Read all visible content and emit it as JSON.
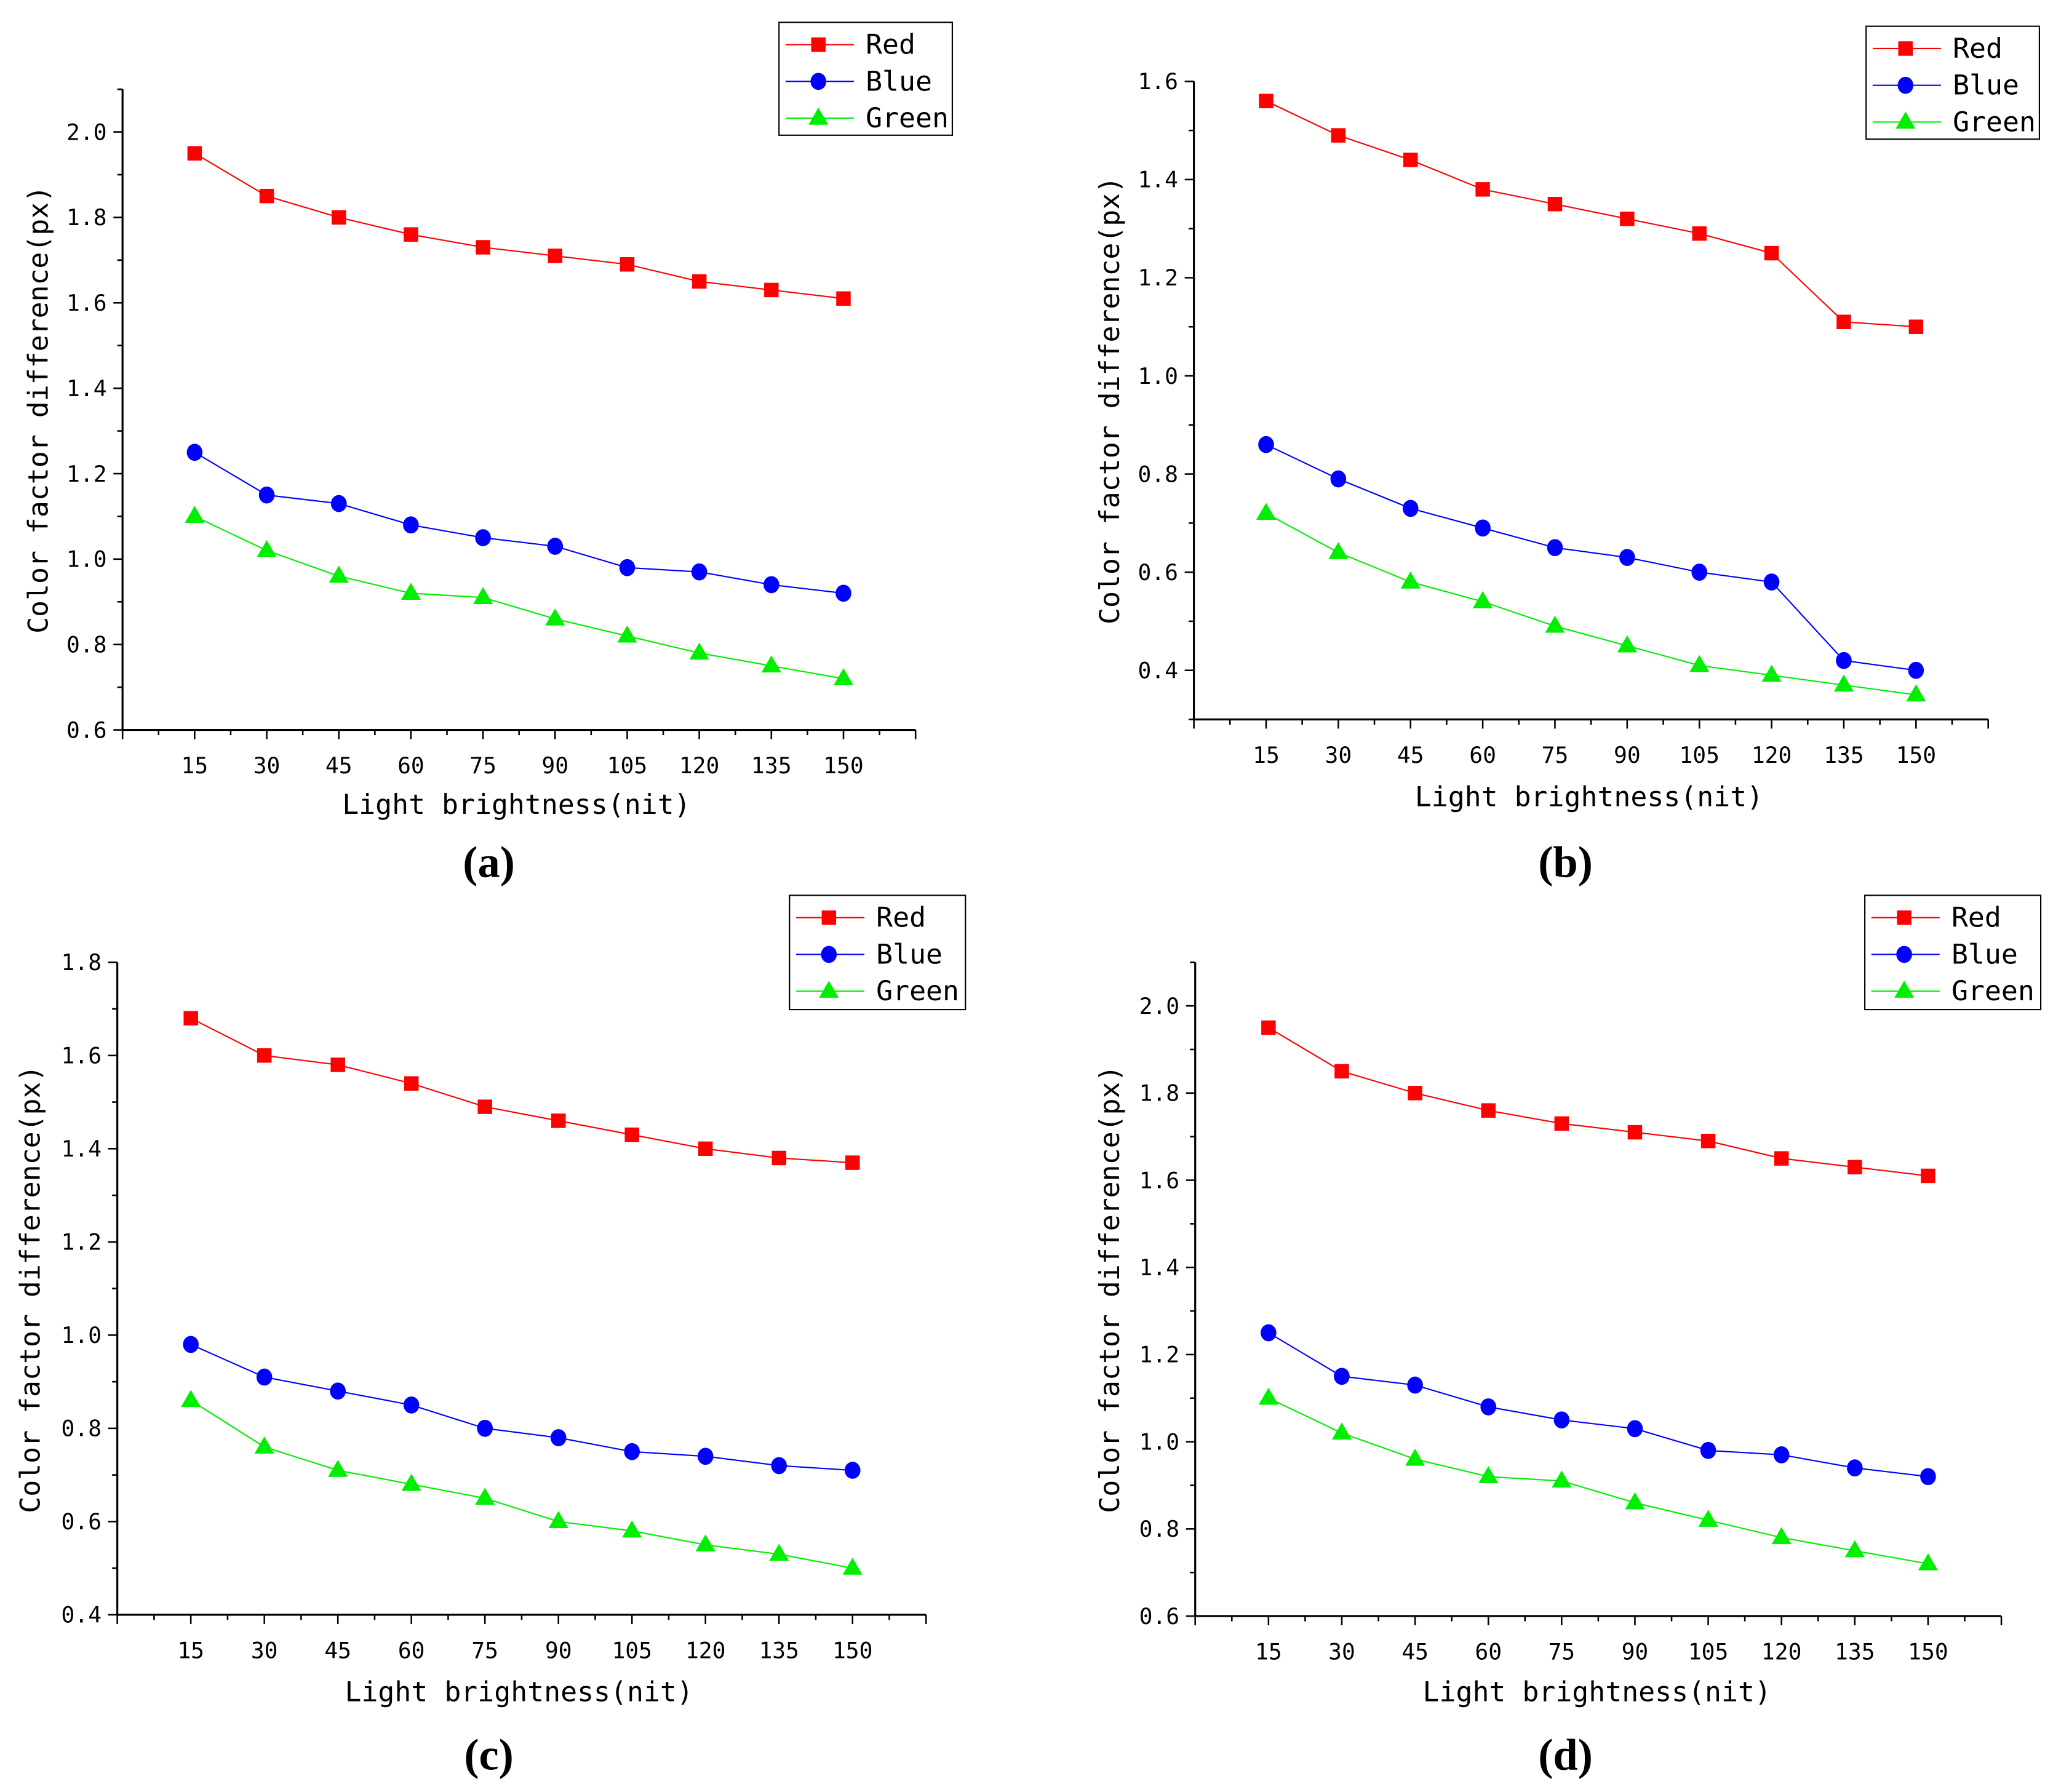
{
  "colors": {
    "Red": "#ff0000",
    "Blue": "#0000ff",
    "Green": "#00ee00"
  },
  "chart_data": [
    {
      "panel_label": "(a)",
      "type": "line",
      "xlabel": "Light brightness(nit)",
      "ylabel": "Color factor difference(px)",
      "x": [
        15,
        30,
        45,
        60,
        75,
        90,
        105,
        120,
        135,
        150
      ],
      "xlim": [
        0,
        165
      ],
      "ylim": [
        0.6,
        2.1
      ],
      "yticks": [
        0.6,
        0.8,
        1.0,
        1.2,
        1.4,
        1.6,
        1.8,
        2.0
      ],
      "grid": false,
      "legend": "top-right",
      "series": [
        {
          "name": "Red",
          "marker": "square",
          "values": [
            1.95,
            1.85,
            1.8,
            1.76,
            1.73,
            1.71,
            1.69,
            1.65,
            1.63,
            1.61
          ]
        },
        {
          "name": "Blue",
          "marker": "circle",
          "values": [
            1.25,
            1.15,
            1.13,
            1.08,
            1.05,
            1.03,
            0.98,
            0.97,
            0.94,
            0.92
          ]
        },
        {
          "name": "Green",
          "marker": "triangle",
          "values": [
            1.1,
            1.02,
            0.96,
            0.92,
            0.91,
            0.86,
            0.82,
            0.78,
            0.75,
            0.72
          ]
        }
      ]
    },
    {
      "panel_label": "(b)",
      "type": "line",
      "xlabel": "Light brightness(nit)",
      "ylabel": "Color factor difference(px)",
      "x": [
        15,
        30,
        45,
        60,
        75,
        90,
        105,
        120,
        135,
        150
      ],
      "xlim": [
        0,
        165
      ],
      "ylim": [
        0.3,
        1.6
      ],
      "yticks": [
        0.4,
        0.6,
        0.8,
        1.0,
        1.2,
        1.4,
        1.6
      ],
      "grid": false,
      "legend": "top-right",
      "series": [
        {
          "name": "Red",
          "marker": "square",
          "values": [
            1.56,
            1.49,
            1.44,
            1.38,
            1.35,
            1.32,
            1.29,
            1.25,
            1.11,
            1.1
          ]
        },
        {
          "name": "Blue",
          "marker": "circle",
          "values": [
            0.86,
            0.79,
            0.73,
            0.69,
            0.65,
            0.63,
            0.6,
            0.58,
            0.42,
            0.4
          ]
        },
        {
          "name": "Green",
          "marker": "triangle",
          "values": [
            0.72,
            0.64,
            0.58,
            0.54,
            0.49,
            0.45,
            0.41,
            0.39,
            0.37,
            0.35
          ]
        }
      ]
    },
    {
      "panel_label": "(c)",
      "type": "line",
      "xlabel": "Light brightness(nit)",
      "ylabel": "Color factor difference(px)",
      "x": [
        15,
        30,
        45,
        60,
        75,
        90,
        105,
        120,
        135,
        150
      ],
      "xlim": [
        0,
        165
      ],
      "ylim": [
        0.4,
        1.8
      ],
      "yticks": [
        0.4,
        0.6,
        0.8,
        1.0,
        1.2,
        1.4,
        1.6,
        1.8
      ],
      "grid": false,
      "legend": "top-right",
      "series": [
        {
          "name": "Red",
          "marker": "square",
          "values": [
            1.68,
            1.6,
            1.58,
            1.54,
            1.49,
            1.46,
            1.43,
            1.4,
            1.38,
            1.37
          ]
        },
        {
          "name": "Blue",
          "marker": "circle",
          "values": [
            0.98,
            0.91,
            0.88,
            0.85,
            0.8,
            0.78,
            0.75,
            0.74,
            0.72,
            0.71
          ]
        },
        {
          "name": "Green",
          "marker": "triangle",
          "values": [
            0.86,
            0.76,
            0.71,
            0.68,
            0.65,
            0.6,
            0.58,
            0.55,
            0.53,
            0.5
          ]
        }
      ]
    },
    {
      "panel_label": "(d)",
      "type": "line",
      "xlabel": "Light brightness(nit)",
      "ylabel": "Color factor difference(px)",
      "x": [
        15,
        30,
        45,
        60,
        75,
        90,
        105,
        120,
        135,
        150
      ],
      "xlim": [
        0,
        165
      ],
      "ylim": [
        0.6,
        2.1
      ],
      "yticks": [
        0.6,
        0.8,
        1.0,
        1.2,
        1.4,
        1.6,
        1.8,
        2.0
      ],
      "grid": false,
      "legend": "top-right",
      "series": [
        {
          "name": "Red",
          "marker": "square",
          "values": [
            1.95,
            1.85,
            1.8,
            1.76,
            1.73,
            1.71,
            1.69,
            1.65,
            1.63,
            1.61
          ]
        },
        {
          "name": "Blue",
          "marker": "circle",
          "values": [
            1.25,
            1.15,
            1.13,
            1.08,
            1.05,
            1.03,
            0.98,
            0.97,
            0.94,
            0.92
          ]
        },
        {
          "name": "Green",
          "marker": "triangle",
          "values": [
            1.1,
            1.02,
            0.96,
            0.92,
            0.91,
            0.86,
            0.82,
            0.78,
            0.75,
            0.72
          ]
        }
      ]
    }
  ]
}
